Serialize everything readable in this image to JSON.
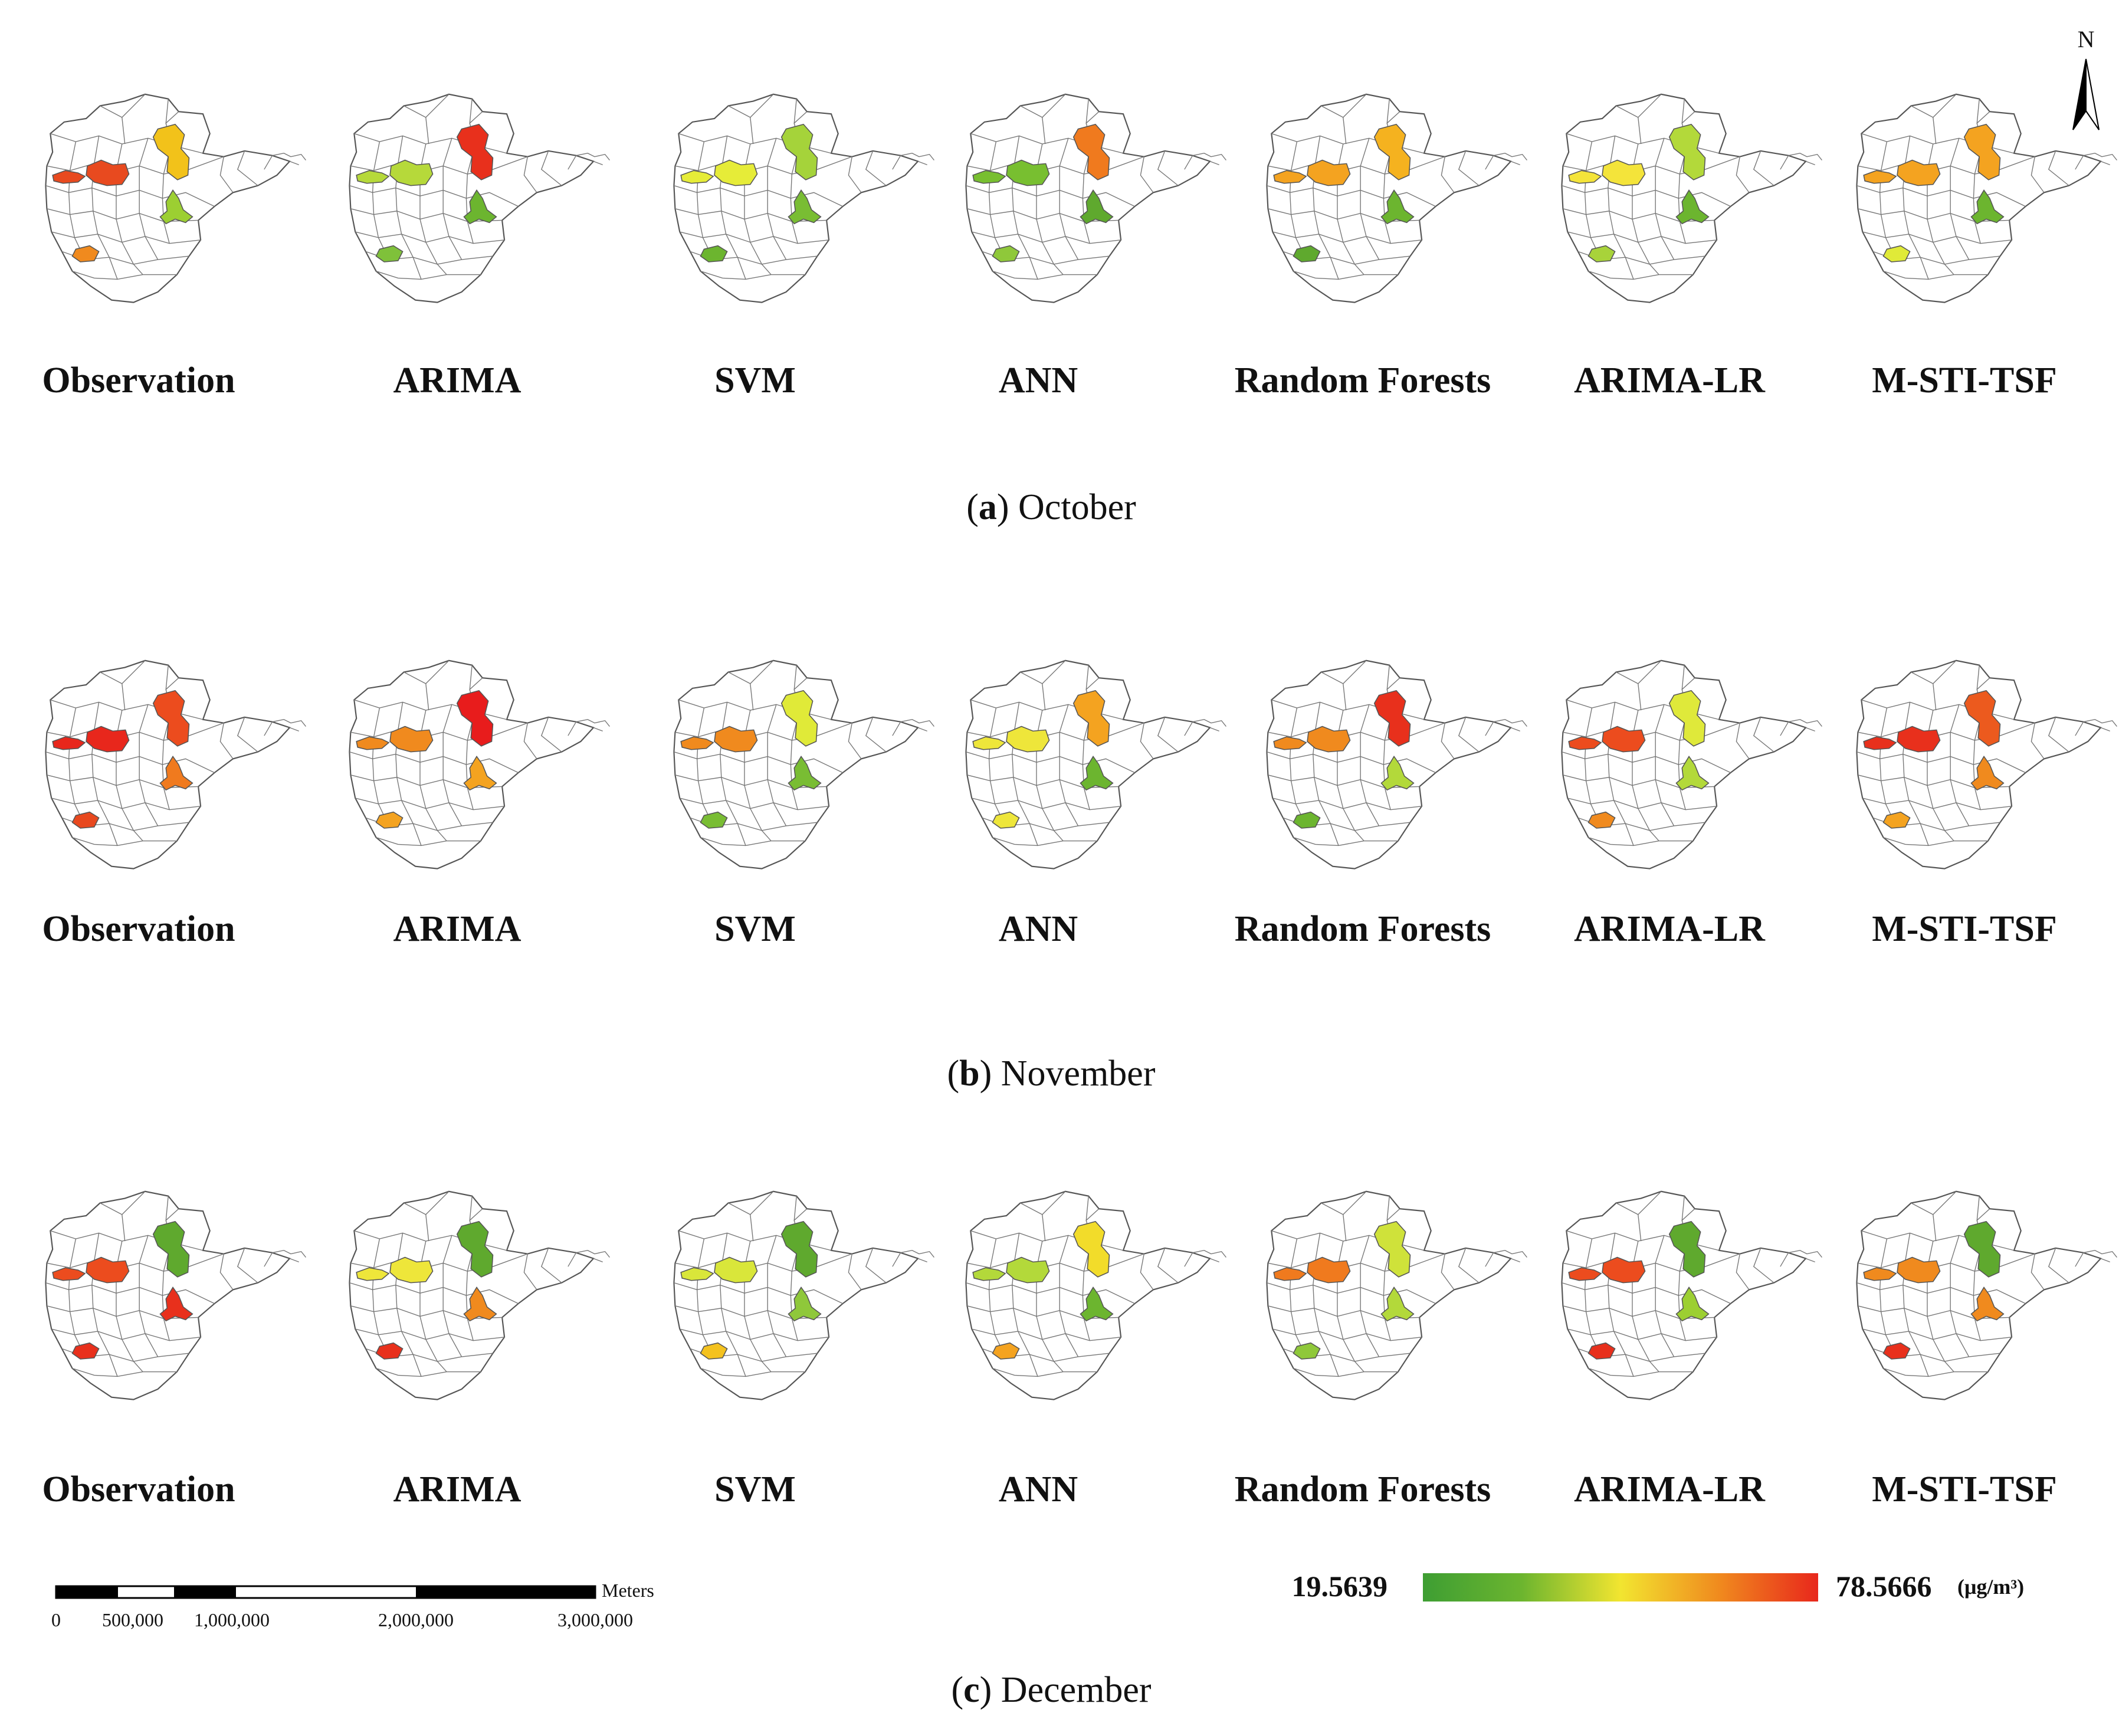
{
  "sections": [
    {
      "letter": "a",
      "month": "October",
      "models": [
        {
          "name": "Observation",
          "regions": [
            "#f2c21a",
            "#e84a1f",
            "#9ccf32",
            "#f08a1e"
          ]
        },
        {
          "name": "ARIMA",
          "regions": [
            "#e8301c",
            "#b6d93a",
            "#6cb52f",
            "#7fc13a"
          ]
        },
        {
          "name": "SVM",
          "regions": [
            "#a5d33a",
            "#e6ec38",
            "#79bd33",
            "#6cb52f"
          ]
        },
        {
          "name": "ANN",
          "regions": [
            "#f07a1e",
            "#78bf30",
            "#5fa92e",
            "#8fc83a"
          ]
        },
        {
          "name": "Random Forests",
          "regions": [
            "#f5b21f",
            "#f4a320",
            "#6cb52f",
            "#5fa92e"
          ]
        },
        {
          "name": "ARIMA-LR",
          "regions": [
            "#b3d93a",
            "#f4e43a",
            "#6cb52f",
            "#a8d33a"
          ]
        },
        {
          "name": "M-STI-TSF",
          "regions": [
            "#f4a320",
            "#f4a320",
            "#6cb52f",
            "#e0ea38"
          ]
        }
      ]
    },
    {
      "letter": "b",
      "month": "November",
      "models": [
        {
          "name": "Observation",
          "regions": [
            "#ec4c1e",
            "#e8271c",
            "#f07a1e",
            "#e8481e"
          ]
        },
        {
          "name": "ARIMA",
          "regions": [
            "#e81c1c",
            "#f08a1e",
            "#f4a320",
            "#f4a320"
          ]
        },
        {
          "name": "SVM",
          "regions": [
            "#e0ea38",
            "#f08a1e",
            "#79bd33",
            "#79bd33"
          ]
        },
        {
          "name": "ANN",
          "regions": [
            "#f4a320",
            "#eee63a",
            "#6cb52f",
            "#eee63a"
          ]
        },
        {
          "name": "Random Forests",
          "regions": [
            "#e8301c",
            "#f08a1e",
            "#b3d93a",
            "#6cb52f"
          ]
        },
        {
          "name": "ARIMA-LR",
          "regions": [
            "#dfe93a",
            "#ec4c1e",
            "#b3d93a",
            "#f08a1e"
          ]
        },
        {
          "name": "M-STI-TSF",
          "regions": [
            "#ec5a1e",
            "#e8301c",
            "#f08a1e",
            "#f4a320"
          ]
        }
      ]
    },
    {
      "letter": "c",
      "month": "December",
      "models": [
        {
          "name": "Observation",
          "regions": [
            "#5fa92e",
            "#ec4c1e",
            "#e8301c",
            "#e8301c"
          ]
        },
        {
          "name": "ARIMA",
          "regions": [
            "#5fa92e",
            "#eee63a",
            "#f08a1e",
            "#e8301c"
          ]
        },
        {
          "name": "SVM",
          "regions": [
            "#5fa92e",
            "#d9e63a",
            "#8fc83a",
            "#f4c21f"
          ]
        },
        {
          "name": "ANN",
          "regions": [
            "#f2dc2a",
            "#b3d93a",
            "#6cb52f",
            "#f4a320"
          ]
        },
        {
          "name": "Random Forests",
          "regions": [
            "#cfe23a",
            "#f07a1e",
            "#b3d93a",
            "#8fc83a"
          ]
        },
        {
          "name": "ARIMA-LR",
          "regions": [
            "#5fa92e",
            "#ec4c1e",
            "#9ccf32",
            "#e8301c"
          ]
        },
        {
          "name": "M-STI-TSF",
          "regions": [
            "#5fa92e",
            "#f08a1e",
            "#f08a1e",
            "#e8301c"
          ]
        }
      ]
    }
  ],
  "north_arrow": {
    "label": "N"
  },
  "scale_bar": {
    "unit": "Meters",
    "ticks": [
      "0",
      "500,000",
      "1,000,000",
      "2,000,000",
      "3,000,000"
    ]
  },
  "legend": {
    "min": "19.5639",
    "max": "78.5666",
    "unit": "(μg/m³)",
    "colors": [
      "#3e9e33",
      "#6cb52f",
      "#f2e530",
      "#f08a1e",
      "#e8271c"
    ]
  }
}
